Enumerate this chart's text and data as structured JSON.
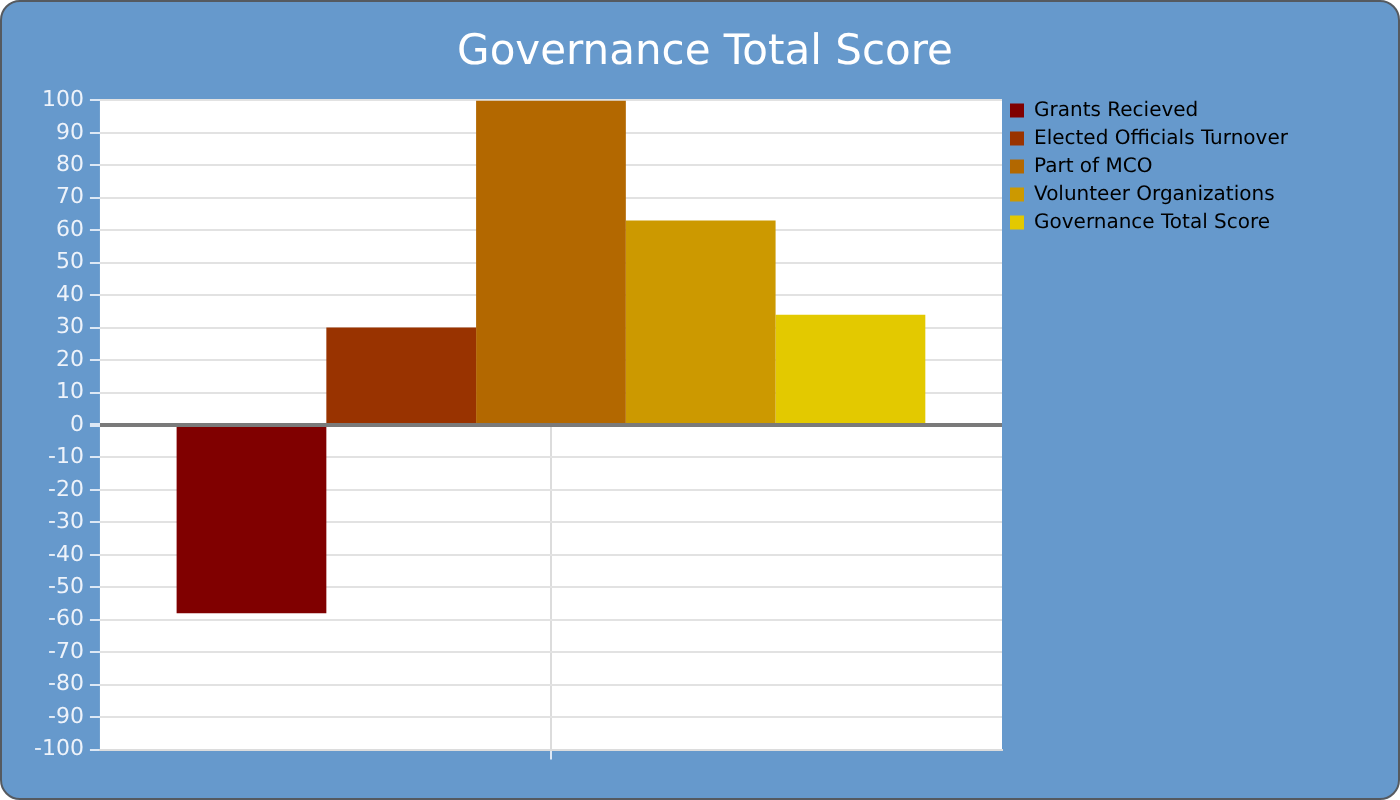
{
  "chart_data": {
    "type": "bar",
    "title": "Governance Total Score",
    "categories": [
      null
    ],
    "series": [
      {
        "name": "Grants Recieved",
        "color": "#800000",
        "values": [
          -58
        ]
      },
      {
        "name": "Elected Officials Turnover",
        "color": "#993300",
        "values": [
          30
        ]
      },
      {
        "name": "Part of MCO",
        "color": "#b36800",
        "values": [
          100
        ]
      },
      {
        "name": "Volunteer Organizations",
        "color": "#cc9900",
        "values": [
          63
        ]
      },
      {
        "name": "Governance Total Score",
        "color": "#e3c900",
        "values": [
          34
        ]
      }
    ],
    "ylim": [
      -100,
      100
    ],
    "yticks": [
      -100,
      -90,
      -80,
      -70,
      -60,
      -50,
      -40,
      -30,
      -20,
      -10,
      0,
      10,
      20,
      30,
      40,
      50,
      60,
      70,
      80,
      90,
      100
    ],
    "grid": true,
    "legend": "top right"
  }
}
